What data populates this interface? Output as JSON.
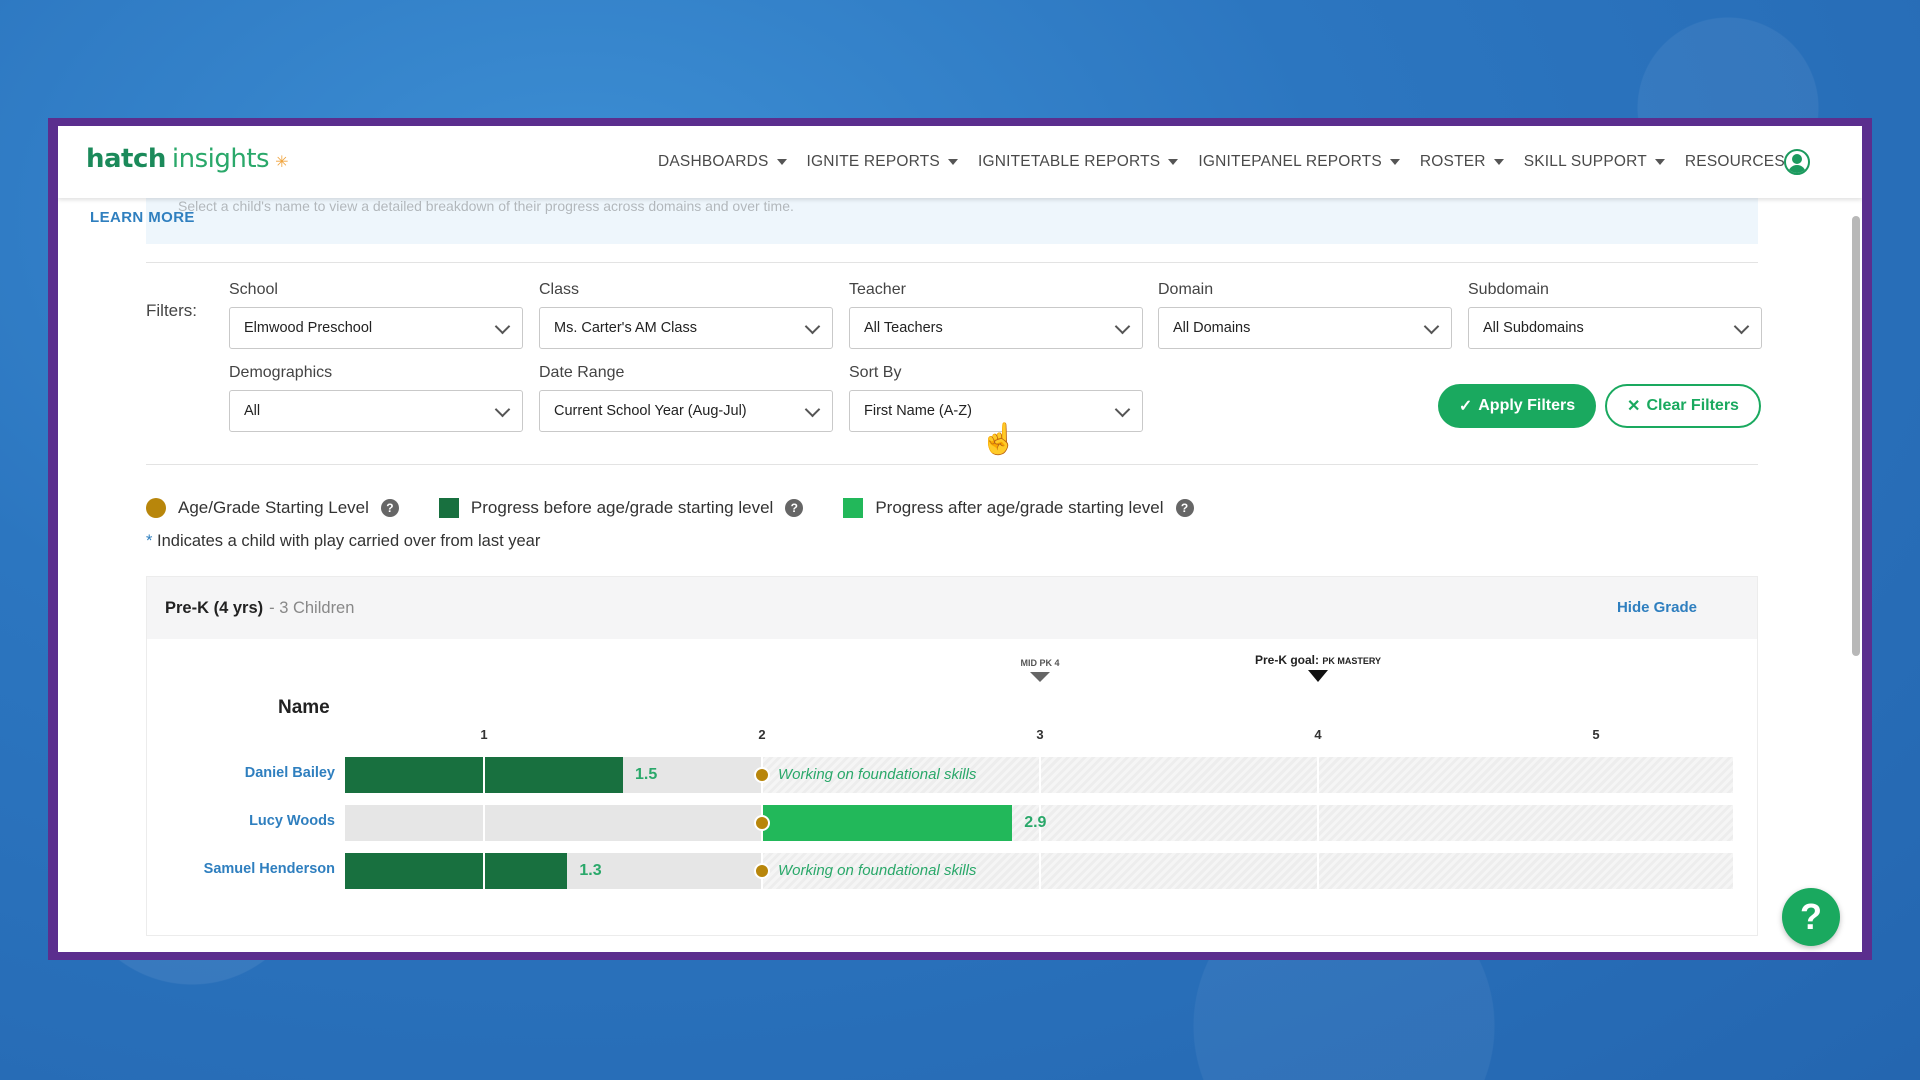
{
  "app": {
    "logo_main": "hatch",
    "logo_sub": "insights"
  },
  "nav": [
    {
      "label": "DASHBOARDS"
    },
    {
      "label": "IGNITE REPORTS"
    },
    {
      "label": "IGNITETABLE REPORTS"
    },
    {
      "label": "IGNITEPANEL REPORTS"
    },
    {
      "label": "ROSTER"
    },
    {
      "label": "SKILL SUPPORT"
    },
    {
      "label": "RESOURCES"
    }
  ],
  "banner": {
    "text": "Select a child's name to view a detailed breakdown of their progress across domains and over time.",
    "learn_more": "LEARN MORE"
  },
  "filters": {
    "label": "Filters:",
    "school": {
      "label": "School",
      "value": "Elmwood Preschool"
    },
    "class": {
      "label": "Class",
      "value": "Ms. Carter's AM Class"
    },
    "teacher": {
      "label": "Teacher",
      "value": "All Teachers"
    },
    "domain": {
      "label": "Domain",
      "value": "All Domains"
    },
    "subdomain": {
      "label": "Subdomain",
      "value": "All Subdomains"
    },
    "demographics": {
      "label": "Demographics",
      "value": "All"
    },
    "date_range": {
      "label": "Date Range",
      "value": "Current School Year (Aug-Jul)"
    },
    "sort_by": {
      "label": "Sort By",
      "value": "First Name (A-Z)"
    },
    "apply": "Apply Filters",
    "clear": "Clear Filters"
  },
  "legend": {
    "starting": "Age/Grade Starting Level",
    "before": "Progress before age/grade starting level",
    "after": "Progress after age/grade starting level",
    "note_ast": "*",
    "note": "Indicates a child with play carried over from last year"
  },
  "colors": {
    "starting": "#b8860b",
    "before": "#18703f",
    "after": "#22b85a",
    "accent": "#1aa95f",
    "link": "#2f7fbf"
  },
  "grade": {
    "title": "Pre-K (4 yrs)",
    "count": "- 3 Children",
    "hide": "Hide Grade",
    "name_header": "Name",
    "ticks": [
      "1",
      "2",
      "3",
      "4",
      "5"
    ],
    "mid_marker": "MID PK 4",
    "goal_prefix": "Pre-K goal:",
    "goal_marker": "PK MASTERY",
    "children": [
      {
        "name": "Daniel Bailey",
        "value": "1.5",
        "status": "Working on foundational skills"
      },
      {
        "name": "Lucy Woods",
        "value": "2.9",
        "status": ""
      },
      {
        "name": "Samuel Henderson",
        "value": "1.3",
        "status": "Working on foundational skills"
      }
    ]
  }
}
